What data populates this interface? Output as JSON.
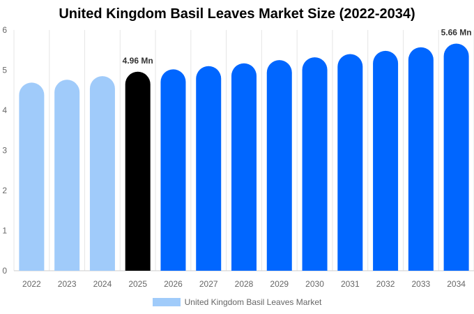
{
  "chart_data": {
    "type": "bar",
    "title": "United Kingdom Basil Leaves Market Size (2022-2034)",
    "categories": [
      "2022",
      "2023",
      "2024",
      "2025",
      "2026",
      "2027",
      "2028",
      "2029",
      "2030",
      "2031",
      "2032",
      "2033",
      "2034"
    ],
    "series": [
      {
        "name": "United Kingdom Basil Leaves Market",
        "values": [
          4.69,
          4.76,
          4.85,
          4.96,
          5.02,
          5.1,
          5.17,
          5.25,
          5.32,
          5.4,
          5.48,
          5.57,
          5.66
        ]
      }
    ],
    "bar_colors": [
      "#a0cbfa",
      "#a0cbfa",
      "#a0cbfa",
      "#000000",
      "#0066ff",
      "#0066ff",
      "#0066ff",
      "#0066ff",
      "#0066ff",
      "#0066ff",
      "#0066ff",
      "#0066ff",
      "#0066ff"
    ],
    "data_labels": [
      {
        "category": "2025",
        "text": "4.96 Mn"
      },
      {
        "category": "2034",
        "text": "5.66 Mn"
      }
    ],
    "yticks": [
      "0",
      "1",
      "2",
      "3",
      "4",
      "5",
      "6"
    ],
    "ylim": [
      0,
      6
    ],
    "grid": "vertical",
    "legend_position": "bottom",
    "legend_color": "#a0cbfa"
  }
}
